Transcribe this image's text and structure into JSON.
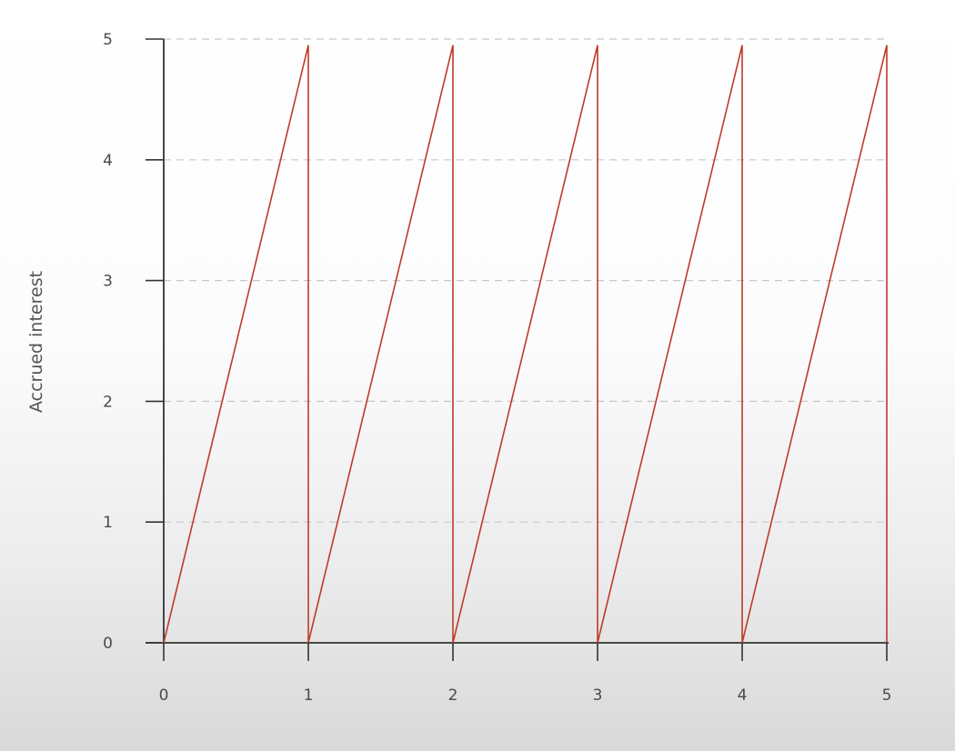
{
  "chart_data": {
    "type": "line",
    "title": "",
    "xlabel": "",
    "ylabel": "Accrued interest",
    "xlim": [
      0,
      5
    ],
    "ylim": [
      0,
      5
    ],
    "x_ticks": [
      0,
      1,
      2,
      3,
      4,
      5
    ],
    "y_ticks": [
      0,
      1,
      2,
      3,
      4,
      5
    ],
    "grid": "horizontal dashed",
    "legend": "none",
    "series": [
      {
        "color": "#c0392b",
        "points": [
          {
            "x": 0,
            "y": 0
          },
          {
            "x": 1,
            "y": 4.95
          },
          {
            "x": 1,
            "y": 0
          },
          {
            "x": 2,
            "y": 4.95
          },
          {
            "x": 2,
            "y": 0
          },
          {
            "x": 3,
            "y": 4.95
          },
          {
            "x": 3,
            "y": 0
          },
          {
            "x": 4,
            "y": 4.95
          },
          {
            "x": 4,
            "y": 0
          },
          {
            "x": 5,
            "y": 4.95
          },
          {
            "x": 5,
            "y": 0
          }
        ]
      }
    ]
  }
}
